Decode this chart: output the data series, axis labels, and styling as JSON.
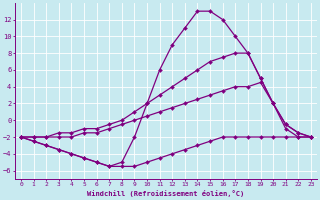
{
  "xlabel": "Windchill (Refroidissement éolien,°C)",
  "x": [
    0,
    1,
    2,
    3,
    4,
    5,
    6,
    7,
    8,
    9,
    10,
    11,
    12,
    13,
    14,
    15,
    16,
    17,
    18,
    19,
    20,
    21,
    22,
    23
  ],
  "line1": [
    -2,
    -2.5,
    -3,
    -3.5,
    -4,
    -4.5,
    -5,
    -5.5,
    -5.5,
    -5.5,
    -5,
    -4.5,
    -4,
    -3.5,
    -3,
    -2.5,
    -2,
    -2,
    -2,
    -2,
    -2,
    -2,
    -2,
    -2
  ],
  "line2": [
    -2,
    -2.5,
    -3,
    -3.5,
    -4,
    -4.5,
    -5,
    -5.5,
    -5,
    -2,
    2,
    6,
    9,
    11,
    13,
    13,
    12,
    10,
    8,
    5,
    2,
    -0.5,
    -1.5,
    -2
  ],
  "line3": [
    -2,
    -2,
    -2,
    -1.5,
    -1.5,
    -1,
    -1,
    -0.5,
    0,
    1,
    2,
    3,
    4,
    5,
    6,
    7,
    7.5,
    8,
    8,
    5,
    2,
    -0.5,
    -1.5,
    -2
  ],
  "line4": [
    -2,
    -2,
    -2,
    -2,
    -2,
    -1.5,
    -1.5,
    -1,
    -0.5,
    0,
    0.5,
    1,
    1.5,
    2,
    2.5,
    3,
    3.5,
    4,
    4,
    4.5,
    2,
    -1,
    -2,
    -2
  ],
  "line_color": "#800080",
  "bg_color": "#c8eaf0",
  "grid_color": "#b0d0da",
  "ylim": [
    -7,
    14
  ],
  "xlim": [
    -0.5,
    23.5
  ],
  "yticks": [
    -6,
    -4,
    -2,
    0,
    2,
    4,
    6,
    8,
    10,
    12
  ],
  "xticks": [
    0,
    1,
    2,
    3,
    4,
    5,
    6,
    7,
    8,
    9,
    10,
    11,
    12,
    13,
    14,
    15,
    16,
    17,
    18,
    19,
    20,
    21,
    22,
    23
  ]
}
